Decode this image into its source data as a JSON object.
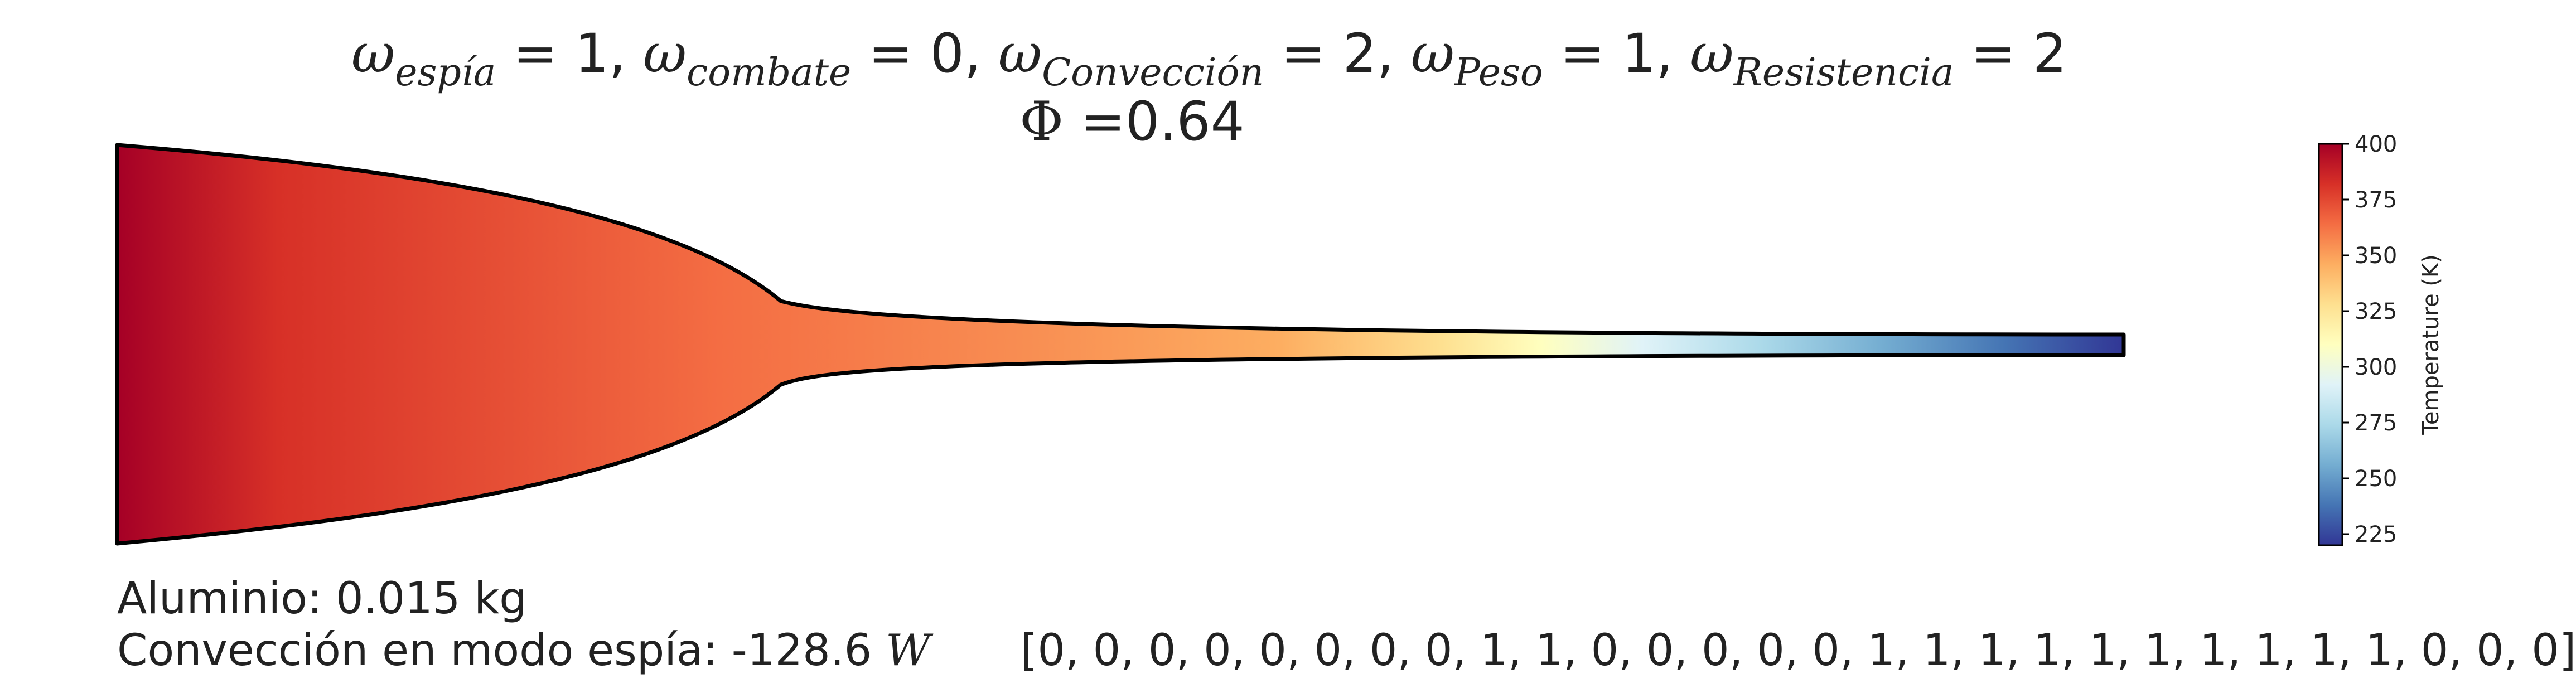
{
  "title": {
    "weights": [
      {
        "symbol": "ω",
        "subscript": "espía",
        "value": "1"
      },
      {
        "symbol": "ω",
        "subscript": "combate",
        "value": "0"
      },
      {
        "symbol": "ω",
        "subscript": "Convección",
        "value": "2"
      },
      {
        "symbol": "ω",
        "subscript": "Peso",
        "value": "1"
      },
      {
        "symbol": "ω",
        "subscript": "Resistencia",
        "value": "2"
      }
    ],
    "separator": ", ",
    "equals": " = ",
    "phi_symbol": "Φ",
    "phi_text": " =0.64"
  },
  "info": {
    "material_text": "Aluminio: 0.015 kg",
    "convection_text": "Convección en modo espía: -128.6 ",
    "convection_unit": "W",
    "binary_vector": "[0, 0, 0, 0, 0, 0, 0, 0, 1, 1, 0, 0, 0, 0, 0, 1, 1, 1, 1, 1, 1, 1, 1, 1, 1, 0, 0, 0]"
  },
  "colorbar": {
    "label": "Temperature (K)",
    "min": 220,
    "max": 400,
    "ticks": [
      "225",
      "250",
      "275",
      "300",
      "325",
      "350",
      "375",
      "400"
    ],
    "colormap": [
      "#a50026",
      "#d73027",
      "#f46d43",
      "#fdae61",
      "#fee090",
      "#ffffbf",
      "#e0f3f8",
      "#abd9e9",
      "#74add1",
      "#4575b4",
      "#313695"
    ]
  },
  "fin": {
    "gradient_stops": [
      {
        "at": 0.0,
        "color": "#a50026"
      },
      {
        "at": 0.08,
        "color": "#d73027"
      },
      {
        "at": 0.3,
        "color": "#f46d43"
      },
      {
        "at": 0.45,
        "color": "#f88d52"
      },
      {
        "at": 0.58,
        "color": "#fdae61"
      },
      {
        "at": 0.66,
        "color": "#fee090"
      },
      {
        "at": 0.71,
        "color": "#ffffbf"
      },
      {
        "at": 0.76,
        "color": "#e0f3f8"
      },
      {
        "at": 0.82,
        "color": "#abd9e9"
      },
      {
        "at": 0.88,
        "color": "#74add1"
      },
      {
        "at": 0.94,
        "color": "#4575b4"
      },
      {
        "at": 1.0,
        "color": "#313695"
      }
    ]
  }
}
